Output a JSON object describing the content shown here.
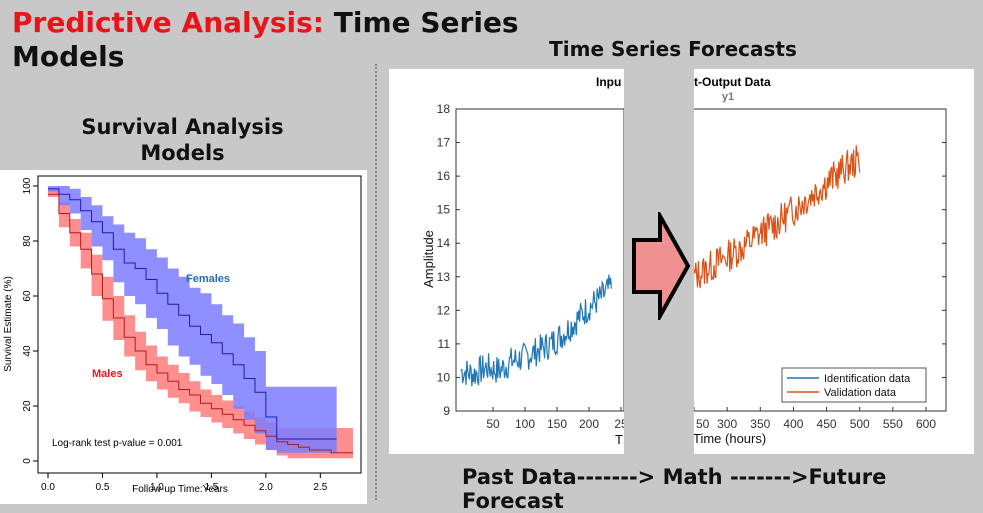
{
  "title": {
    "accent": "Predictive Analysis:",
    "rest": " Time Series",
    "line2": "Models"
  },
  "survival": {
    "heading_line1": "Survival Analysis",
    "heading_line2": "Models",
    "females_label": "Females",
    "males_label": "Males",
    "pvalue_text": "Log-rank test p-value = 0.001",
    "colors": {
      "females_band": "#7b7bff",
      "females_line": "#1c1cb0",
      "males_band": "#ff7b7b",
      "males_line": "#b01c1c",
      "females_label": "#1f6fb5",
      "males_label": "#e8141b"
    }
  },
  "forecast": {
    "heading": "Time Series Forecasts",
    "panel_title_left": "Inpu",
    "panel_title_right": "t-Output Data",
    "subtitle_right": "y1",
    "xlabel_left": "T",
    "xlabel_right": "Time (hours)",
    "legend": [
      "Identification data",
      "Validation data"
    ],
    "colors": {
      "identification": "#1f77b4",
      "validation": "#d95319",
      "arrow_fill": "#f09090"
    }
  },
  "footer": "Past Data-------> Math ------->Future Forecast",
  "chart_data": [
    {
      "type": "line",
      "title": "",
      "xlabel": "Follow-up Time:Years",
      "ylabel": "Survival Estimate (%)",
      "xlim": [
        0,
        2.8
      ],
      "ylim": [
        0,
        100
      ],
      "xticks": [
        "0.0",
        "0.5",
        "1.0",
        "1.5",
        "2.0",
        "2.5"
      ],
      "yticks": [
        "0",
        "20",
        "40",
        "60",
        "80",
        "100"
      ],
      "annotations": [
        "Females",
        "Males",
        "Log-rank test p-value = 0.001"
      ],
      "series": [
        {
          "name": "Females",
          "x": [
            0,
            0.1,
            0.2,
            0.3,
            0.4,
            0.5,
            0.6,
            0.7,
            0.8,
            0.9,
            1.0,
            1.1,
            1.2,
            1.3,
            1.4,
            1.5,
            1.6,
            1.7,
            1.8,
            1.9,
            2.0,
            2.1,
            2.2,
            2.3,
            2.4,
            2.5,
            2.65
          ],
          "y": [
            99,
            97,
            95,
            91,
            87,
            83,
            77,
            72,
            70,
            66,
            61,
            57,
            53,
            49,
            46,
            43,
            39,
            35,
            30,
            25,
            16,
            8,
            8,
            8,
            8,
            8,
            8
          ],
          "lower": [
            98,
            93,
            90,
            84,
            78,
            73,
            65,
            60,
            57,
            52,
            48,
            42,
            38,
            35,
            31,
            28,
            24,
            19,
            15,
            10,
            4,
            3,
            3,
            3,
            3,
            3,
            3
          ],
          "upper": [
            100,
            100,
            99,
            96,
            93,
            89,
            86,
            83,
            81,
            77,
            74,
            70,
            67,
            63,
            61,
            57,
            53,
            50,
            45,
            40,
            27,
            27,
            27,
            27,
            27,
            27,
            27
          ]
        },
        {
          "name": "Males",
          "x": [
            0,
            0.1,
            0.2,
            0.3,
            0.4,
            0.5,
            0.6,
            0.7,
            0.8,
            0.9,
            1.0,
            1.1,
            1.2,
            1.3,
            1.4,
            1.5,
            1.6,
            1.7,
            1.8,
            1.9,
            2.0,
            2.1,
            2.2,
            2.3,
            2.4,
            2.5,
            2.6,
            2.8
          ],
          "y": [
            97,
            90,
            83,
            77,
            68,
            59,
            52,
            45,
            40,
            35,
            32,
            29,
            26,
            24,
            21,
            19,
            17,
            15,
            13,
            11,
            9,
            7,
            6,
            5,
            4,
            4,
            3,
            3
          ],
          "lower": [
            96,
            85,
            78,
            70,
            60,
            51,
            44,
            38,
            33,
            29,
            26,
            23,
            21,
            18,
            16,
            14,
            12,
            10,
            8,
            6,
            4,
            2,
            1,
            1,
            1,
            1,
            1,
            1
          ],
          "upper": [
            99,
            94,
            88,
            83,
            75,
            67,
            60,
            53,
            47,
            42,
            38,
            35,
            32,
            29,
            26,
            24,
            22,
            20,
            18,
            16,
            14,
            12,
            12,
            12,
            12,
            12,
            12,
            12
          ]
        }
      ]
    },
    {
      "type": "line",
      "title": "Input-Output Data",
      "subtitle": "y1",
      "xlabel": "Time (hours)",
      "ylabel": "Amplitude",
      "ylim": [
        9,
        18
      ],
      "yticks": [
        "9",
        "10",
        "11",
        "12",
        "13",
        "14",
        "15",
        "16",
        "17",
        "18"
      ],
      "left_xticks": [
        "50",
        "100",
        "150",
        "200",
        "25"
      ],
      "right_xticks": [
        "50",
        "300",
        "350",
        "400",
        "450",
        "500",
        "550",
        "600"
      ],
      "series": [
        {
          "name": "Identification data",
          "x": [
            0,
            20,
            40,
            60,
            80,
            100,
            120,
            140,
            160,
            180,
            200,
            220,
            240,
            260
          ],
          "y": [
            10.2,
            10.1,
            10.3,
            10.2,
            10.5,
            10.6,
            10.8,
            11.0,
            11.3,
            11.7,
            12.1,
            12.4,
            12.8,
            13.0
          ]
        },
        {
          "name": "Validation data",
          "x": [
            250,
            275,
            300,
            325,
            350,
            375,
            400,
            425,
            450,
            475,
            500
          ],
          "y": [
            13.0,
            13.3,
            13.6,
            13.9,
            14.3,
            14.6,
            15.0,
            15.4,
            15.8,
            16.2,
            16.5
          ]
        }
      ]
    }
  ]
}
